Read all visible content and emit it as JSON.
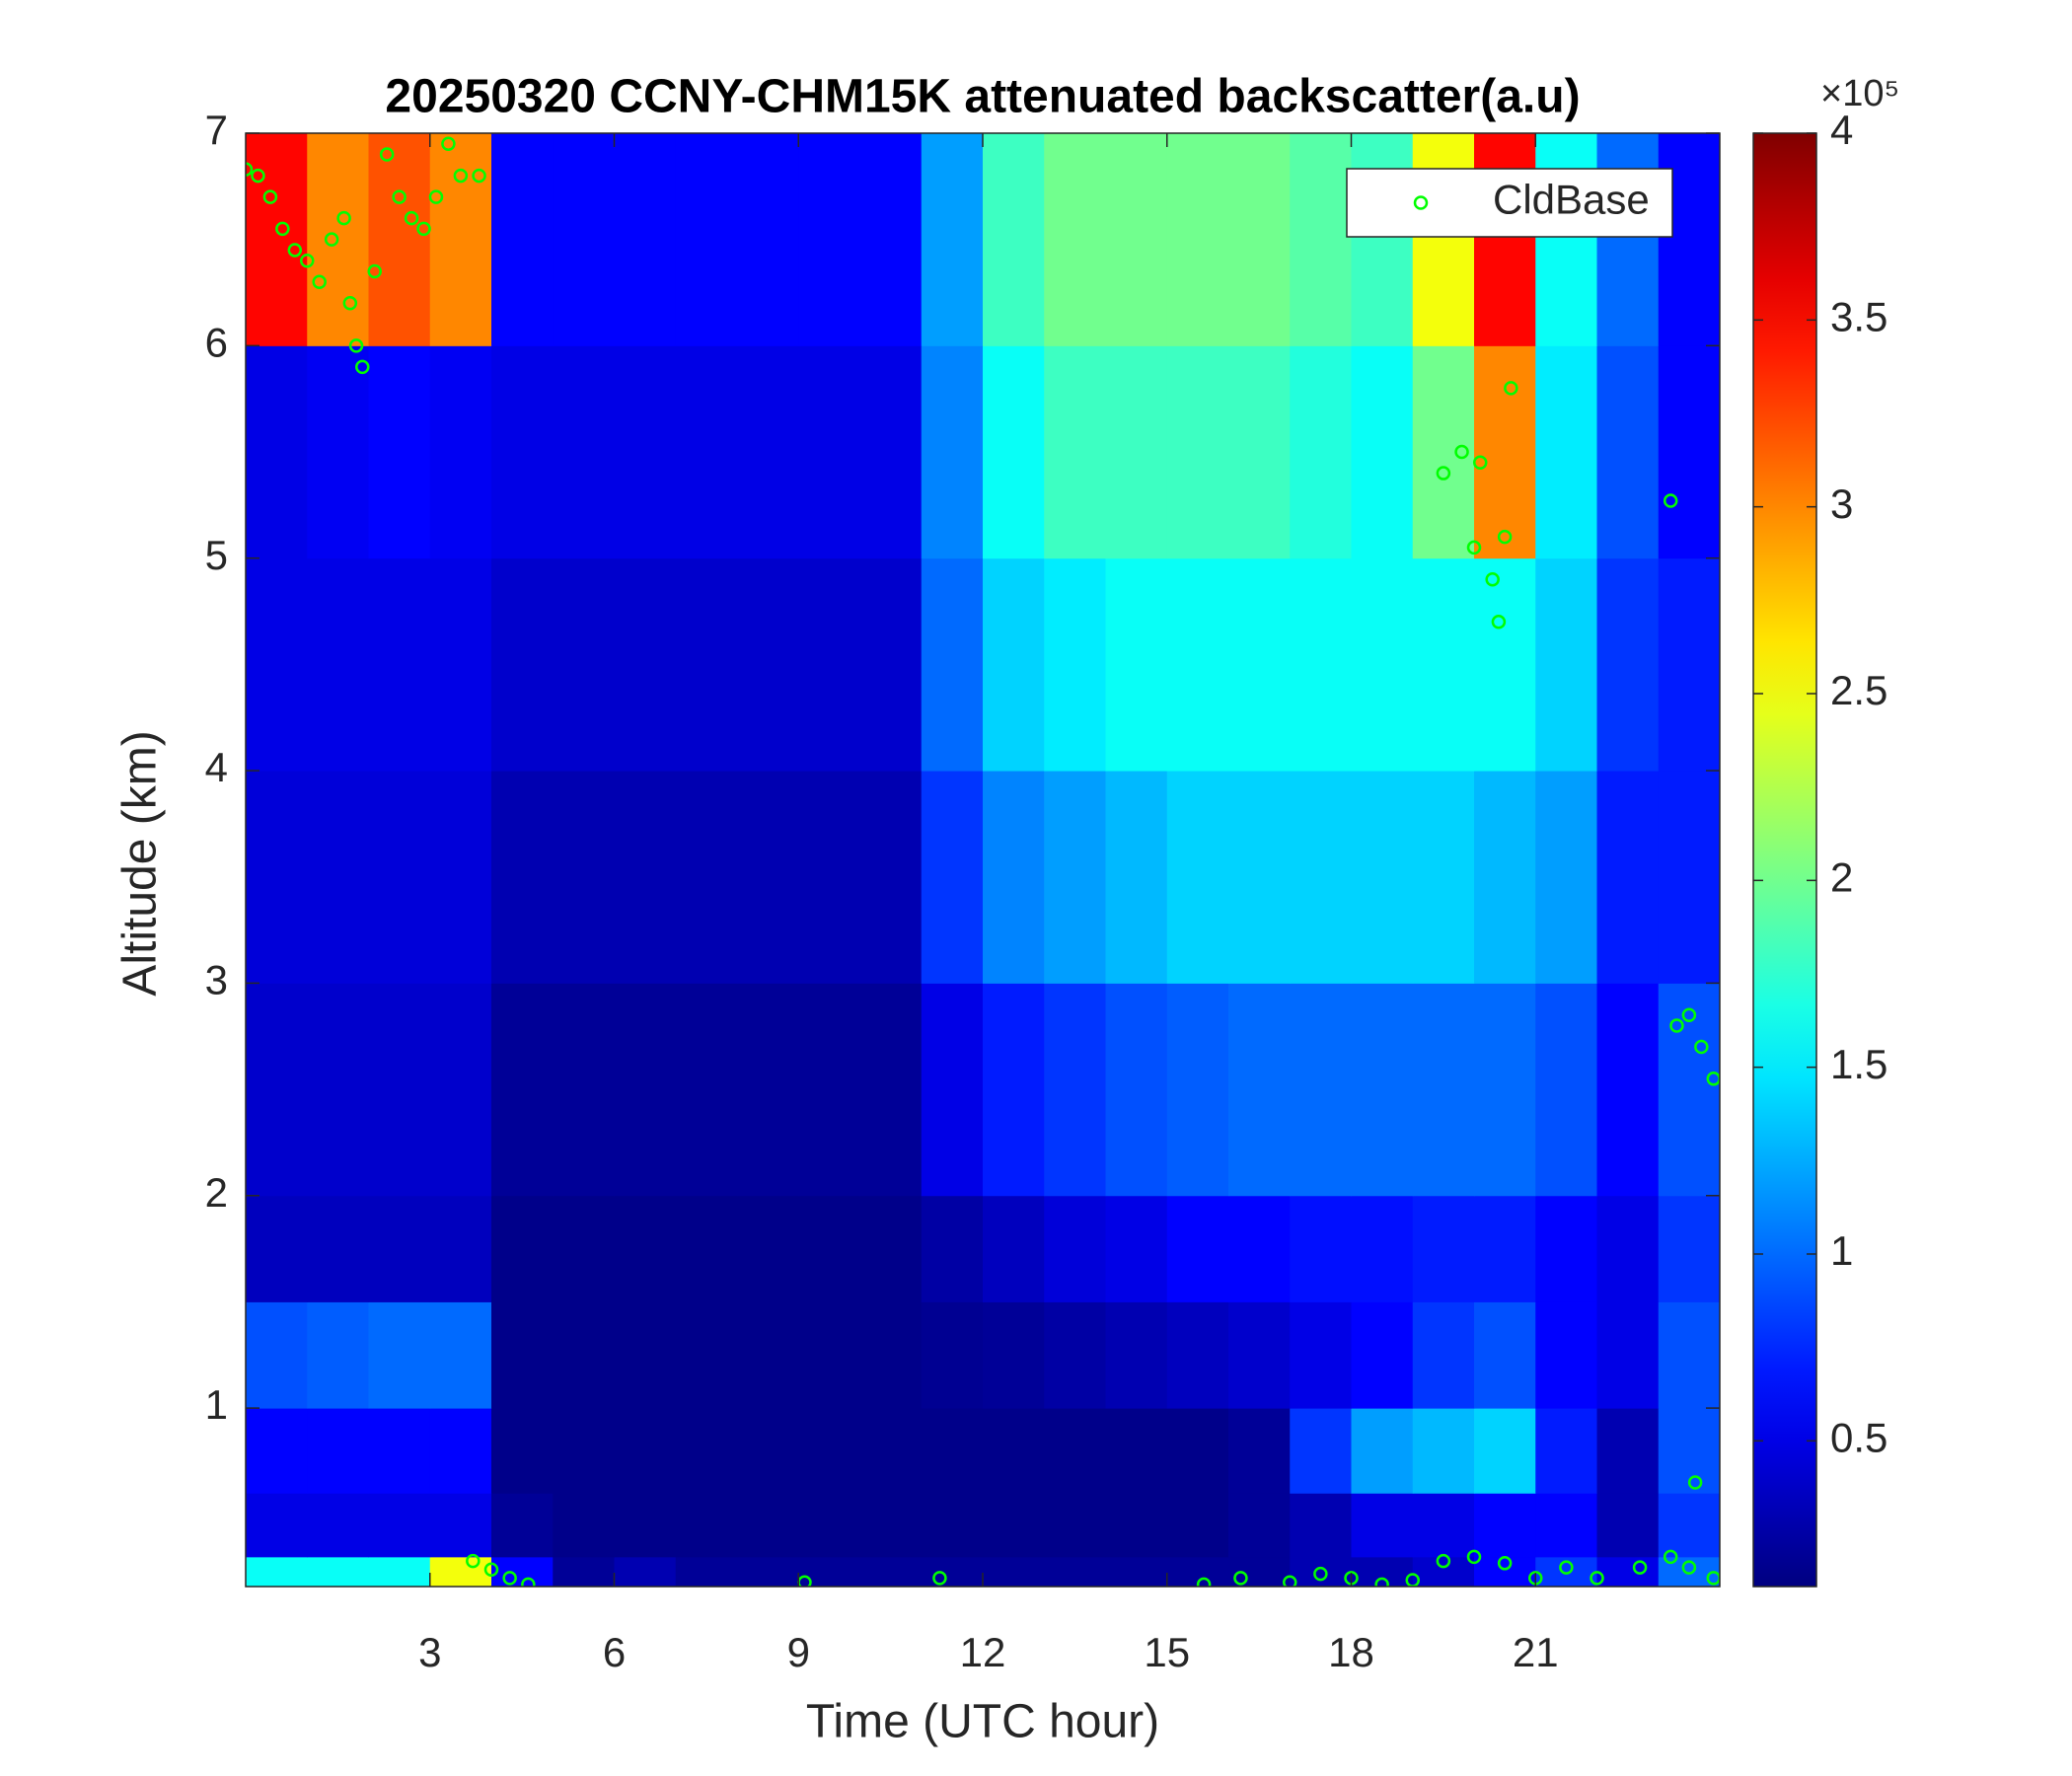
{
  "chart_data": {
    "type": "heatmap",
    "title": "20250320 CCNY-CHM15K attenuated backscatter(a.u)",
    "xlabel": "Time (UTC hour)",
    "ylabel": "Altitude (km)",
    "xlim": [
      0,
      24
    ],
    "ylim": [
      0.16,
      7
    ],
    "xticks": [
      3,
      6,
      9,
      12,
      15,
      18,
      21
    ],
    "yticks": [
      1,
      2,
      3,
      4,
      5,
      6,
      7
    ],
    "x_edges": [
      0,
      1,
      2,
      3,
      4,
      5,
      6,
      7,
      8,
      9,
      10,
      11,
      12,
      13,
      14,
      15,
      16,
      17,
      18,
      19,
      20,
      21,
      22,
      23,
      24
    ],
    "y_edges": [
      0.16,
      0.3,
      0.6,
      1.0,
      1.5,
      2,
      3,
      4,
      5,
      6,
      7
    ],
    "z": [
      [
        1.6,
        1.6,
        1.6,
        2.5,
        0.6,
        0.2,
        0.3,
        0.2,
        0.2,
        0.2,
        0.2,
        0.2,
        0.2,
        0.2,
        0.2,
        0.2,
        0.2,
        0.3,
        0.3,
        0.4,
        0.6,
        0.8,
        0.5,
        1.0
      ],
      [
        0.5,
        0.5,
        0.5,
        0.5,
        0.2,
        0.15,
        0.15,
        0.15,
        0.15,
        0.15,
        0.15,
        0.15,
        0.15,
        0.15,
        0.15,
        0.15,
        0.2,
        0.3,
        0.5,
        0.5,
        0.6,
        0.6,
        0.3,
        0.8
      ],
      [
        0.6,
        0.6,
        0.6,
        0.6,
        0.15,
        0.15,
        0.15,
        0.15,
        0.15,
        0.15,
        0.15,
        0.15,
        0.15,
        0.15,
        0.15,
        0.15,
        0.2,
        0.8,
        1.2,
        1.3,
        1.4,
        0.7,
        0.3,
        0.9
      ],
      [
        0.9,
        0.95,
        1.0,
        1.0,
        0.15,
        0.15,
        0.15,
        0.15,
        0.15,
        0.15,
        0.15,
        0.18,
        0.2,
        0.25,
        0.3,
        0.35,
        0.4,
        0.5,
        0.6,
        0.8,
        0.9,
        0.6,
        0.5,
        0.9
      ],
      [
        0.35,
        0.35,
        0.35,
        0.35,
        0.15,
        0.15,
        0.15,
        0.15,
        0.15,
        0.15,
        0.15,
        0.25,
        0.35,
        0.45,
        0.5,
        0.6,
        0.6,
        0.65,
        0.65,
        0.7,
        0.7,
        0.6,
        0.5,
        0.8
      ],
      [
        0.4,
        0.4,
        0.4,
        0.4,
        0.2,
        0.2,
        0.2,
        0.2,
        0.2,
        0.2,
        0.2,
        0.5,
        0.7,
        0.8,
        0.9,
        0.95,
        1.0,
        1.0,
        1.0,
        1.0,
        1.0,
        0.9,
        0.6,
        0.9
      ],
      [
        0.45,
        0.45,
        0.45,
        0.45,
        0.3,
        0.3,
        0.3,
        0.3,
        0.3,
        0.3,
        0.3,
        0.8,
        1.1,
        1.2,
        1.3,
        1.4,
        1.4,
        1.4,
        1.4,
        1.4,
        1.3,
        1.2,
        0.7,
        0.7
      ],
      [
        0.5,
        0.5,
        0.5,
        0.5,
        0.4,
        0.4,
        0.4,
        0.4,
        0.4,
        0.4,
        0.4,
        1.0,
        1.4,
        1.5,
        1.6,
        1.6,
        1.6,
        1.6,
        1.6,
        1.6,
        1.6,
        1.4,
        0.8,
        0.7
      ],
      [
        0.5,
        0.55,
        0.6,
        0.55,
        0.5,
        0.5,
        0.5,
        0.5,
        0.5,
        0.5,
        0.5,
        1.1,
        1.6,
        1.8,
        1.8,
        1.8,
        1.8,
        1.7,
        1.6,
        2.0,
        3.0,
        1.5,
        0.9,
        0.6
      ],
      [
        3.5,
        3.0,
        3.2,
        3.0,
        0.6,
        0.6,
        0.6,
        0.6,
        0.6,
        0.6,
        0.6,
        1.2,
        1.8,
        2.0,
        2.0,
        2.0,
        2.0,
        1.9,
        1.8,
        2.5,
        3.5,
        1.6,
        1.0,
        0.6
      ]
    ],
    "colormap": "jet",
    "clim": [
      0.11,
      4
    ],
    "colorbar_ticks": [
      0.5,
      1,
      1.5,
      2,
      2.5,
      3,
      3.5,
      4
    ],
    "colorbar_label": "×10⁵",
    "legend": "upper right",
    "series": [
      {
        "name": "CldBase",
        "color": "#00ff00",
        "x": [
          0.0,
          0.2,
          0.4,
          0.6,
          0.8,
          1.0,
          1.2,
          1.4,
          1.6,
          1.7,
          1.8,
          1.9,
          2.1,
          2.3,
          2.5,
          2.7,
          2.9,
          3.1,
          3.3,
          3.5,
          3.8,
          3.7,
          4.0,
          4.3,
          4.6,
          9.1,
          11.3,
          15.6,
          16.2,
          17.0,
          17.5,
          18.0,
          18.5,
          19.0,
          19.5,
          20.0,
          20.5,
          21.0,
          21.5,
          22.0,
          22.7,
          23.2,
          23.5,
          23.9,
          19.5,
          19.8,
          20.1,
          20.0,
          20.3,
          20.5,
          20.4,
          20.6,
          23.2,
          23.3,
          23.5,
          23.7,
          23.9,
          23.6
        ],
        "y": [
          6.83,
          6.8,
          6.7,
          6.55,
          6.45,
          6.4,
          6.3,
          6.5,
          6.6,
          6.2,
          6.0,
          5.9,
          6.35,
          6.9,
          6.7,
          6.6,
          6.55,
          6.7,
          6.95,
          6.8,
          6.8,
          0.28,
          0.24,
          0.2,
          0.17,
          0.18,
          0.2,
          0.17,
          0.2,
          0.18,
          0.22,
          0.2,
          0.17,
          0.19,
          0.28,
          0.3,
          0.27,
          0.2,
          0.25,
          0.2,
          0.25,
          0.3,
          0.25,
          0.2,
          5.4,
          5.5,
          5.45,
          5.05,
          4.9,
          5.1,
          4.7,
          5.8,
          5.27,
          2.8,
          2.85,
          2.7,
          2.55,
          0.65
        ]
      }
    ]
  }
}
